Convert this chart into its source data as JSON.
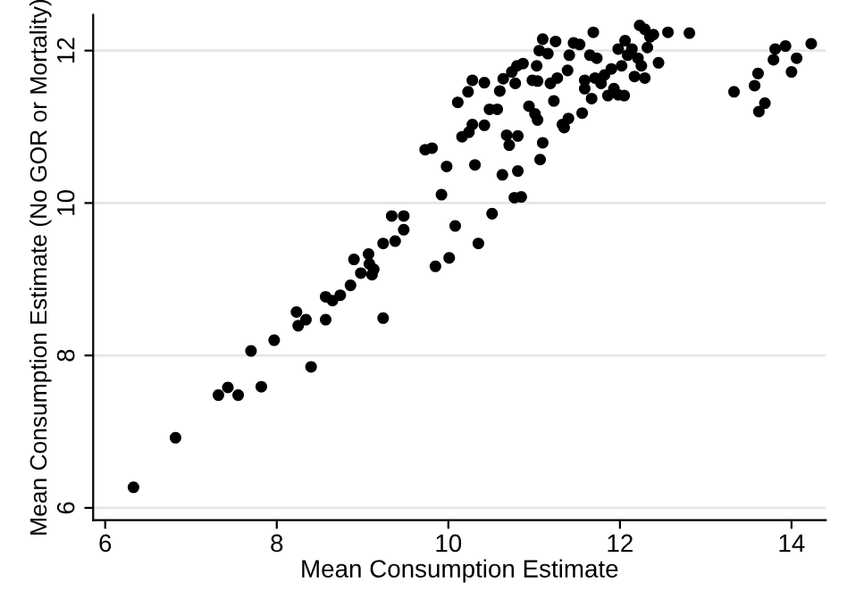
{
  "chart_data": {
    "type": "scatter",
    "xlabel": "Mean Consumption Estimate",
    "ylabel": "Mean Consumption Estimate (No GOR or Mortality)",
    "xlim": [
      5.86,
      14.4
    ],
    "ylim": [
      5.84,
      12.47
    ],
    "xticks": [
      6,
      8,
      10,
      12,
      14
    ],
    "yticks": [
      6,
      8,
      10,
      12
    ],
    "grid": "y",
    "marker": "circle",
    "series": [
      {
        "color": "#000000",
        "x": [
          6.33,
          6.82,
          7.32,
          7.43,
          7.55,
          7.7,
          7.82,
          7.97,
          8.23,
          8.25,
          8.34,
          8.4,
          8.57,
          8.57,
          8.65,
          8.74,
          8.86,
          8.9,
          8.98,
          9.07,
          9.08,
          9.11,
          9.13,
          9.24,
          9.24,
          9.34,
          9.38,
          9.48,
          9.48,
          9.73,
          9.81,
          9.85,
          9.92,
          9.98,
          10.01,
          10.08,
          10.11,
          10.16,
          10.23,
          10.24,
          10.28,
          10.28,
          10.31,
          10.35,
          10.42,
          10.42,
          10.48,
          10.51,
          10.57,
          10.6,
          10.63,
          10.64,
          10.68,
          10.71,
          10.74,
          10.77,
          10.78,
          10.8,
          10.81,
          10.81,
          10.85,
          10.87,
          10.94,
          10.98,
          11.01,
          11.04,
          11.03,
          11.04,
          11.06,
          11.07,
          11.1,
          11.1,
          11.16,
          11.19,
          11.23,
          11.25,
          11.27,
          11.33,
          11.35,
          11.39,
          11.4,
          11.41,
          11.46,
          11.53,
          11.56,
          11.59,
          11.59,
          11.65,
          11.67,
          11.69,
          11.71,
          11.73,
          11.78,
          11.82,
          11.86,
          11.9,
          11.93,
          11.98,
          11.98,
          12.02,
          12.05,
          12.06,
          12.09,
          12.14,
          12.17,
          12.21,
          12.23,
          12.25,
          12.29,
          12.29,
          12.32,
          12.35,
          12.39,
          12.45,
          12.56,
          12.81,
          13.33,
          13.57,
          13.61,
          13.62,
          13.69,
          13.79,
          13.81,
          13.93,
          14.0,
          14.06,
          14.23
        ],
        "values": [
          6.27,
          6.92,
          7.48,
          7.58,
          7.48,
          8.06,
          7.59,
          8.2,
          8.57,
          8.39,
          8.47,
          7.85,
          8.47,
          8.77,
          8.72,
          8.79,
          8.92,
          9.26,
          9.08,
          9.33,
          9.2,
          9.06,
          9.13,
          8.49,
          9.47,
          9.83,
          9.5,
          9.83,
          9.65,
          10.7,
          10.72,
          9.17,
          10.11,
          10.48,
          9.28,
          9.7,
          11.32,
          10.87,
          11.46,
          10.93,
          11.61,
          11.03,
          10.5,
          9.47,
          11.58,
          11.02,
          11.23,
          9.86,
          11.23,
          11.47,
          10.37,
          11.63,
          10.89,
          10.76,
          11.72,
          10.07,
          11.57,
          11.8,
          10.88,
          10.42,
          10.08,
          11.83,
          11.27,
          11.61,
          11.17,
          11.6,
          11.8,
          11.09,
          12.0,
          10.57,
          10.79,
          12.15,
          11.96,
          11.57,
          11.34,
          12.12,
          11.64,
          11.03,
          10.99,
          11.74,
          11.11,
          11.94,
          12.1,
          12.08,
          11.18,
          11.61,
          11.5,
          11.94,
          11.37,
          12.24,
          11.64,
          11.9,
          11.57,
          11.68,
          11.41,
          11.76,
          11.5,
          12.02,
          11.42,
          11.8,
          11.41,
          12.13,
          11.94,
          12.02,
          11.66,
          11.9,
          12.33,
          11.8,
          11.64,
          12.28,
          12.04,
          12.18,
          12.21,
          11.84,
          12.24,
          12.23,
          11.46,
          11.54,
          11.7,
          11.2,
          11.31,
          11.88,
          12.02,
          12.06,
          11.72,
          11.9,
          12.09
        ]
      }
    ]
  }
}
